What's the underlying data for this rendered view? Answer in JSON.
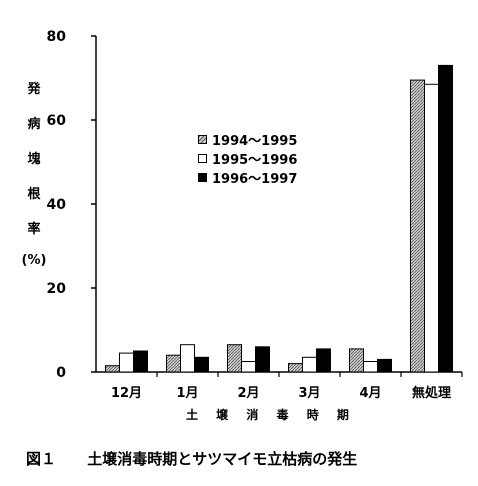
{
  "chart_data": {
    "type": "bar",
    "ylabel_chars": [
      "発",
      "病",
      "塊",
      "根",
      "率",
      "(%)"
    ],
    "xlabel": "土 壌 消 毒 時 期",
    "categories": [
      "12月",
      "1月",
      "2月",
      "3月",
      "4月",
      "無処理"
    ],
    "ylim": [
      0,
      80
    ],
    "yticks": [
      0,
      20,
      40,
      60,
      80
    ],
    "series": [
      {
        "name": "1994～1995",
        "fill": "hatched-gray",
        "values": [
          1.5,
          4,
          6.5,
          2,
          5.5,
          69.5
        ]
      },
      {
        "name": "1995～1996",
        "fill": "#ffffff",
        "values": [
          4.5,
          6.5,
          2.5,
          3.5,
          2.5,
          68.5
        ]
      },
      {
        "name": "1996～1997",
        "fill": "#000000",
        "values": [
          5,
          3.5,
          6,
          5.5,
          3,
          73
        ]
      }
    ],
    "legend_position": "center"
  },
  "caption": {
    "label": "図１",
    "text": "土壌消毒時期とサツマイモ立枯病の発生"
  }
}
